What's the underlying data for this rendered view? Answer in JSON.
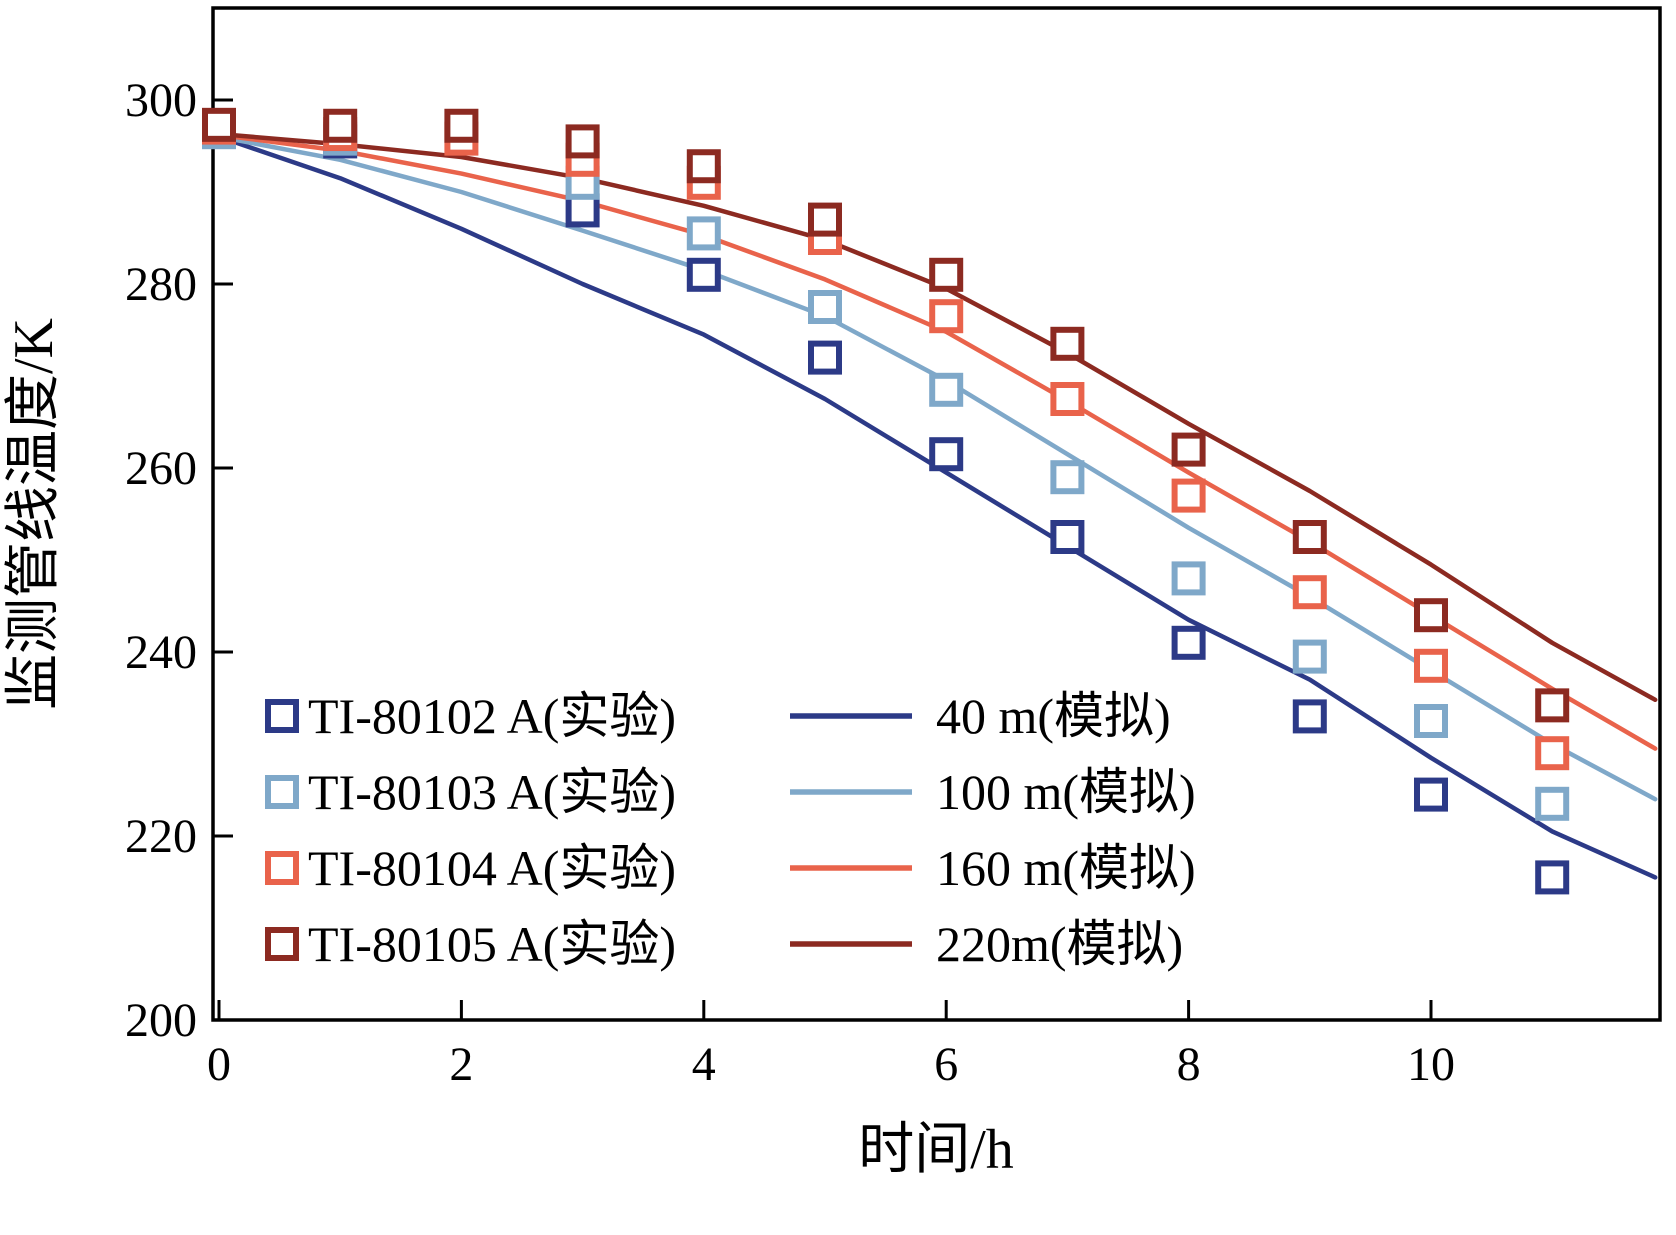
{
  "figure": {
    "background": "#ffffff",
    "frame_color": "#000000"
  },
  "chart_data": {
    "type": "line+scatter",
    "title": "",
    "xlabel": "时间/h",
    "ylabel": "监测管线温度/K",
    "xlim": [
      0,
      11.9
    ],
    "ylim": [
      200,
      310
    ],
    "xticks": [
      0,
      2,
      4,
      6,
      8,
      10
    ],
    "yticks": [
      200,
      220,
      240,
      260,
      280,
      300
    ],
    "grid": false,
    "legend_position": "lower-left-inside",
    "scatter_series": [
      {
        "name": "TI-80102 A(实验)",
        "color": "#2c3a87",
        "marker": "open-square",
        "x": [
          0,
          1,
          3,
          4,
          5,
          6,
          7,
          8,
          9,
          10,
          11
        ],
        "y": [
          297,
          295.5,
          288,
          281,
          272,
          261.5,
          252.5,
          241,
          233,
          224.5,
          215.5
        ]
      },
      {
        "name": "TI-80103 A(实验)",
        "color": "#7fa8c9",
        "marker": "open-square",
        "x": [
          0,
          1,
          3,
          4,
          5,
          6,
          7,
          8,
          9,
          10,
          11
        ],
        "y": [
          296.5,
          295.8,
          291,
          285.5,
          277.5,
          268.5,
          259,
          248,
          239.5,
          232.5,
          223.5
        ]
      },
      {
        "name": "TI-80104 A(实验)",
        "color": "#e9634b",
        "marker": "open-square",
        "x": [
          0,
          1,
          2,
          3,
          4,
          5,
          6,
          7,
          8,
          9,
          10,
          11
        ],
        "y": [
          297,
          296.3,
          295.8,
          293.5,
          291,
          285,
          276.5,
          267.5,
          257,
          246.5,
          238.5,
          229
        ]
      },
      {
        "name": "TI-80105 A(实验)",
        "color": "#8c2a21",
        "marker": "open-square",
        "x": [
          0,
          1,
          2,
          3,
          4,
          5,
          6,
          7,
          8,
          9,
          10,
          11
        ],
        "y": [
          297.3,
          297.2,
          297.2,
          295.5,
          292.8,
          287,
          281,
          273.5,
          262,
          252.5,
          244,
          234.2
        ]
      }
    ],
    "line_series": [
      {
        "name": "40 m(模拟)",
        "color": "#2c3a87",
        "x": [
          0,
          1,
          2,
          3,
          4,
          5,
          6,
          7,
          8,
          9,
          10,
          11,
          11.85
        ],
        "y": [
          296,
          291.5,
          286,
          280,
          274.5,
          267.5,
          259.5,
          251.5,
          243.5,
          237,
          228.5,
          220.5,
          215.5
        ]
      },
      {
        "name": "100 m(模拟)",
        "color": "#7fa8c9",
        "x": [
          0,
          1,
          2,
          3,
          4,
          5,
          6,
          7,
          8,
          9,
          10,
          11,
          11.85
        ],
        "y": [
          296,
          293.5,
          290,
          285.8,
          281.5,
          276.5,
          269.5,
          261.5,
          253.5,
          246,
          238,
          230,
          224
        ]
      },
      {
        "name": "160 m(模拟)",
        "color": "#e9634b",
        "x": [
          0,
          1,
          2,
          3,
          4,
          5,
          6,
          7,
          8,
          9,
          10,
          11,
          11.85
        ],
        "y": [
          296.2,
          294.5,
          292,
          289,
          285.3,
          280.5,
          274.8,
          267.3,
          259.5,
          252,
          244,
          236,
          229.5
        ]
      },
      {
        "name": "220m(模拟)",
        "color": "#8c2a21",
        "x": [
          0,
          1,
          2,
          3,
          4,
          5,
          6,
          7,
          8,
          9,
          10,
          11,
          11.85
        ],
        "y": [
          296.3,
          295.2,
          293.8,
          291.5,
          288.5,
          284.8,
          279.5,
          272.5,
          264.8,
          257.5,
          249.5,
          241,
          234.8
        ]
      }
    ]
  }
}
